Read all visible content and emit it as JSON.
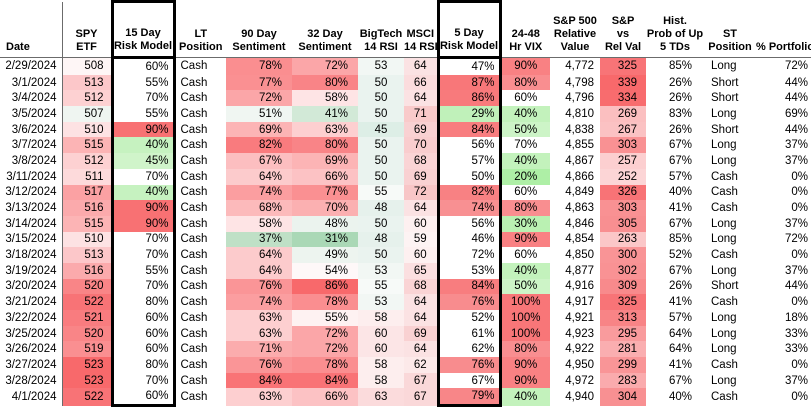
{
  "table": {
    "columns": [
      {
        "id": "date",
        "lines": [
          "Date"
        ],
        "boxed": false
      },
      {
        "id": "spy-etf",
        "lines": [
          "SPY",
          "ETF"
        ],
        "boxed": false
      },
      {
        "id": "risk-15d",
        "lines": [
          "15 Day",
          "Risk Model"
        ],
        "boxed": true
      },
      {
        "id": "lt-position",
        "lines": [
          "LT",
          "Position"
        ],
        "boxed": false
      },
      {
        "id": "sent-90d",
        "lines": [
          "90 Day",
          "Sentiment"
        ],
        "boxed": false
      },
      {
        "id": "sent-32d",
        "lines": [
          "32 Day",
          "Sentiment"
        ],
        "boxed": false
      },
      {
        "id": "bigtech-rsi",
        "lines": [
          "BigTech",
          "14 RSI"
        ],
        "boxed": false
      },
      {
        "id": "msci-rsi",
        "lines": [
          "MSCI",
          "14 RSI"
        ],
        "boxed": false
      },
      {
        "id": "risk-5d",
        "lines": [
          "5 Day",
          "Risk Model"
        ],
        "boxed": true
      },
      {
        "id": "vix-24-48",
        "lines": [
          "24-48",
          "Hr VIX"
        ],
        "boxed": false
      },
      {
        "id": "sp500-rel-value",
        "lines": [
          "S&P 500",
          "Relative",
          "Value"
        ],
        "boxed": false
      },
      {
        "id": "sp-vs-rel-val",
        "lines": [
          "S&P",
          "vs",
          "Rel Val"
        ],
        "boxed": false
      },
      {
        "id": "hist-prob-up-5tds",
        "lines": [
          "Hist.",
          "Prob of Up",
          "5 TDs"
        ],
        "boxed": false
      },
      {
        "id": "st-position",
        "lines": [
          "ST",
          "Position"
        ],
        "boxed": false
      },
      {
        "id": "pct-portfolio",
        "lines": [
          "% Portfolio"
        ],
        "boxed": false
      }
    ],
    "rows": [
      [
        [
          "2/29/2024"
        ],
        [
          "508",
          "#fef6f6"
        ],
        [
          "60%"
        ],
        [
          "Cash"
        ],
        [
          "78%",
          "#fa8e90"
        ],
        [
          "72%",
          "#fba6a8"
        ],
        [
          "53",
          "#f2f7f4"
        ],
        [
          "64",
          "#fbe2e3"
        ],
        [
          "47%"
        ],
        [
          "90%",
          "#f98183"
        ],
        [
          "4,772"
        ],
        [
          "325",
          "#f87477"
        ],
        [
          "85%"
        ],
        [
          "Long"
        ],
        [
          "72%"
        ]
      ],
      [
        [
          "3/1/2024"
        ],
        [
          "513",
          "#fcc7c9"
        ],
        [
          "55%"
        ],
        [
          "Cash"
        ],
        [
          "77%",
          "#fa9092"
        ],
        [
          "80%",
          "#f98487"
        ],
        [
          "50",
          "#eaf3ef"
        ],
        [
          "66",
          "#fbdcdd"
        ],
        [
          "87%",
          "#f87779"
        ],
        [
          "80%",
          "#f98e90"
        ],
        [
          "4,798"
        ],
        [
          "339",
          "#f8696b"
        ],
        [
          "26%"
        ],
        [
          "Short"
        ],
        [
          "44%"
        ]
      ],
      [
        [
          "3/4/2024"
        ],
        [
          "512",
          "#fdd1d2"
        ],
        [
          "70%"
        ],
        [
          "Cash"
        ],
        [
          "72%",
          "#fba6a8"
        ],
        [
          "58%",
          "#fee4e5"
        ],
        [
          "50",
          "#eaf3ef"
        ],
        [
          "64",
          "#fbe2e3"
        ],
        [
          "86%",
          "#f87a7c"
        ],
        [
          "60%"
        ],
        [
          "4,796"
        ],
        [
          "334",
          "#f86c6e"
        ],
        [
          "26%"
        ],
        [
          "Short"
        ],
        [
          "44%"
        ]
      ],
      [
        [
          "3/5/2024"
        ],
        [
          "507",
          "#eff5f1"
        ],
        [
          "55%"
        ],
        [
          "Cash"
        ],
        [
          "51%",
          "#f0f6f2"
        ],
        [
          "41%",
          "#d2e9d7"
        ],
        [
          "50",
          "#eaf3ef"
        ],
        [
          "71",
          "#f9caca"
        ],
        [
          "29%",
          "#c0f1ba"
        ],
        [
          "40%",
          "#c3f2bc"
        ],
        [
          "4,810"
        ],
        [
          "269",
          "#fbbfc0"
        ],
        [
          "83%"
        ],
        [
          "Long"
        ],
        [
          "69%"
        ]
      ],
      [
        [
          "3/6/2024"
        ],
        [
          "510",
          "#fde2e3"
        ],
        [
          "90%",
          "#f87173"
        ],
        [
          "Cash"
        ],
        [
          "69%",
          "#fcb4b5"
        ],
        [
          "63%",
          "#fdcfd0"
        ],
        [
          "45",
          "#ddeee6"
        ],
        [
          "69",
          "#f9d1d2"
        ],
        [
          "84%",
          "#f87d7f"
        ],
        [
          "50%",
          "#cdf4c7"
        ],
        [
          "4,838"
        ],
        [
          "267",
          "#fbc2c3"
        ],
        [
          "26%"
        ],
        [
          "Short"
        ],
        [
          "44%"
        ]
      ],
      [
        [
          "3/7/2024"
        ],
        [
          "515",
          "#fcb4b5"
        ],
        [
          "40%",
          "#c6f2c0"
        ],
        [
          "Cash"
        ],
        [
          "82%",
          "#f97b7e"
        ],
        [
          "80%",
          "#f98487"
        ],
        [
          "50",
          "#eaf3ef"
        ],
        [
          "70",
          "#f9cdce"
        ],
        [
          "56%"
        ],
        [
          "70%"
        ],
        [
          "4,855"
        ],
        [
          "303",
          "#f99193"
        ],
        [
          "67%"
        ],
        [
          "Long"
        ],
        [
          "37%"
        ]
      ],
      [
        [
          "3/8/2024"
        ],
        [
          "512",
          "#fdd1d2"
        ],
        [
          "45%",
          "#d0f4ca"
        ],
        [
          "Cash"
        ],
        [
          "67%",
          "#fcbec0"
        ],
        [
          "69%",
          "#fcb4b5"
        ],
        [
          "50",
          "#eaf3ef"
        ],
        [
          "68",
          "#fad4d5"
        ],
        [
          "57%"
        ],
        [
          "40%",
          "#c3f2bc"
        ],
        [
          "4,867"
        ],
        [
          "257",
          "#fccfd0"
        ],
        [
          "67%"
        ],
        [
          "Long"
        ],
        [
          "37%"
        ]
      ],
      [
        [
          "3/11/2024"
        ],
        [
          "511",
          "#fddadb"
        ],
        [
          "70%"
        ],
        [
          "Cash"
        ],
        [
          "64%",
          "#fccbcc"
        ],
        [
          "66%",
          "#fcc2c4"
        ],
        [
          "50",
          "#eaf3ef"
        ],
        [
          "69",
          "#f9d1d2"
        ],
        [
          "50%"
        ],
        [
          "20%",
          "#aeefa6"
        ],
        [
          "4,866"
        ],
        [
          "252",
          "#fcd5d6"
        ],
        [
          "57%"
        ],
        [
          "Cash"
        ],
        [
          "0%"
        ]
      ],
      [
        [
          "3/12/2024"
        ],
        [
          "517",
          "#fba1a3"
        ],
        [
          "40%",
          "#c6f2c0"
        ],
        [
          "Cash"
        ],
        [
          "74%",
          "#fb9ea0"
        ],
        [
          "77%",
          "#fa9092"
        ],
        [
          "55",
          "#f7faf8"
        ],
        [
          "72",
          "#f8c6c7"
        ],
        [
          "82%",
          "#f88183"
        ],
        [
          "60%"
        ],
        [
          "4,849"
        ],
        [
          "326",
          "#f87376"
        ],
        [
          "40%"
        ],
        [
          "Cash"
        ],
        [
          "0%"
        ]
      ],
      [
        [
          "3/13/2024"
        ],
        [
          "516",
          "#fbaaac"
        ],
        [
          "90%",
          "#f87173"
        ],
        [
          "Cash"
        ],
        [
          "68%",
          "#fcbabb"
        ],
        [
          "70%",
          "#fbb0b1"
        ],
        [
          "48",
          "#e6f1ec"
        ],
        [
          "64",
          "#fbe2e3"
        ],
        [
          "74%",
          "#f89092"
        ],
        [
          "80%",
          "#f98e90"
        ],
        [
          "4,863"
        ],
        [
          "303",
          "#f99193"
        ],
        [
          "41%"
        ],
        [
          "Cash"
        ],
        [
          "0%"
        ]
      ],
      [
        [
          "3/14/2024"
        ],
        [
          "515",
          "#fcb4b5"
        ],
        [
          "90%",
          "#f87173"
        ],
        [
          "Cash"
        ],
        [
          "58%",
          "#fee4e5"
        ],
        [
          "48%",
          "#ebf3ee"
        ],
        [
          "50",
          "#eaf3ef"
        ],
        [
          "60",
          "#fdf0f0"
        ],
        [
          "56%"
        ],
        [
          "30%",
          "#baf1b2"
        ],
        [
          "4,846"
        ],
        [
          "305",
          "#f88f91"
        ],
        [
          "67%"
        ],
        [
          "Long"
        ],
        [
          "37%"
        ]
      ],
      [
        [
          "3/15/2024"
        ],
        [
          "510",
          "#fde2e3"
        ],
        [
          "70%"
        ],
        [
          "Cash"
        ],
        [
          "37%",
          "#bfe0c6"
        ],
        [
          "31%",
          "#aad8b6"
        ],
        [
          "48",
          "#e6f1ec"
        ],
        [
          "59",
          "#fdf3f3"
        ],
        [
          "46%"
        ],
        [
          "90%",
          "#f98183"
        ],
        [
          "4,854"
        ],
        [
          "263",
          "#fbc7c8"
        ],
        [
          "85%"
        ],
        [
          "Long"
        ],
        [
          "72%"
        ]
      ],
      [
        [
          "3/18/2024"
        ],
        [
          "513",
          "#fcc7c9"
        ],
        [
          "70%"
        ],
        [
          "Cash"
        ],
        [
          "64%",
          "#fccbcc"
        ],
        [
          "49%",
          "#edf4ef"
        ],
        [
          "50",
          "#eaf3ef"
        ],
        [
          "60",
          "#fdf0f0"
        ],
        [
          "72%"
        ],
        [
          "60%"
        ],
        [
          "4,850"
        ],
        [
          "300",
          "#f99496"
        ],
        [
          "52%"
        ],
        [
          "Cash"
        ],
        [
          "0%"
        ]
      ],
      [
        [
          "3/19/2024"
        ],
        [
          "516",
          "#fbaaac"
        ],
        [
          "55%"
        ],
        [
          "Cash"
        ],
        [
          "64%",
          "#fccbcc"
        ],
        [
          "54%",
          "#fef8f8"
        ],
        [
          "53",
          "#f2f7f4"
        ],
        [
          "65",
          "#fbdfe0"
        ],
        [
          "53%"
        ],
        [
          "40%",
          "#c3f2bc"
        ],
        [
          "4,877"
        ],
        [
          "302",
          "#f99294"
        ],
        [
          "67%"
        ],
        [
          "Long"
        ],
        [
          "37%"
        ]
      ],
      [
        [
          "3/20/2024"
        ],
        [
          "520",
          "#f98587"
        ],
        [
          "70%"
        ],
        [
          "Cash"
        ],
        [
          "76%",
          "#fa9597"
        ],
        [
          "86%",
          "#f8696b"
        ],
        [
          "55",
          "#f7faf8"
        ],
        [
          "68",
          "#fad4d5"
        ],
        [
          "84%",
          "#f87d7f"
        ],
        [
          "50%",
          "#cdf4c7"
        ],
        [
          "4,916"
        ],
        [
          "309",
          "#f88a8c"
        ],
        [
          "26%"
        ],
        [
          "Short"
        ],
        [
          "44%"
        ]
      ],
      [
        [
          "3/21/2024"
        ],
        [
          "522",
          "#f87376"
        ],
        [
          "80%"
        ],
        [
          "Cash"
        ],
        [
          "74%",
          "#fb9ea0"
        ],
        [
          "78%",
          "#fa8e90"
        ],
        [
          "53",
          "#f2f7f4"
        ],
        [
          "64",
          "#fbe2e3"
        ],
        [
          "76%",
          "#f88c8e"
        ],
        [
          "100%",
          "#f87678"
        ],
        [
          "4,917"
        ],
        [
          "325",
          "#f87477"
        ],
        [
          "41%"
        ],
        [
          "Cash"
        ],
        [
          "0%"
        ]
      ],
      [
        [
          "3/22/2024"
        ],
        [
          "521",
          "#f97c7f"
        ],
        [
          "60%"
        ],
        [
          "Cash"
        ],
        [
          "63%",
          "#fdcfd0"
        ],
        [
          "55%",
          "#fef2f2"
        ],
        [
          "58",
          "#fdeeee"
        ],
        [
          "64",
          "#fbe2e3"
        ],
        [
          "52%"
        ],
        [
          "100%",
          "#f87678"
        ],
        [
          "4,921"
        ],
        [
          "313",
          "#f88486"
        ],
        [
          "57%"
        ],
        [
          "Long"
        ],
        [
          "18%"
        ]
      ],
      [
        [
          "3/25/2024"
        ],
        [
          "520",
          "#f98587"
        ],
        [
          "60%"
        ],
        [
          "Cash"
        ],
        [
          "63%",
          "#fdcfd0"
        ],
        [
          "72%",
          "#fba6a8"
        ],
        [
          "60",
          "#fce5e6"
        ],
        [
          "69",
          "#f9d1d2"
        ],
        [
          "61%"
        ],
        [
          "100%",
          "#f87678"
        ],
        [
          "4,923"
        ],
        [
          "295",
          "#f99b9d"
        ],
        [
          "64%"
        ],
        [
          "Long"
        ],
        [
          "33%"
        ]
      ],
      [
        [
          "3/26/2024"
        ],
        [
          "519",
          "#fa8f91"
        ],
        [
          "60%"
        ],
        [
          "Cash"
        ],
        [
          "71%",
          "#fbacad"
        ],
        [
          "72%",
          "#fba6a8"
        ],
        [
          "60",
          "#fce5e6"
        ],
        [
          "64",
          "#fbe2e3"
        ],
        [
          "62%"
        ],
        [
          "80%",
          "#f98e90"
        ],
        [
          "4,922"
        ],
        [
          "281",
          "#faaeb0"
        ],
        [
          "64%"
        ],
        [
          "Long"
        ],
        [
          "33%"
        ]
      ],
      [
        [
          "3/27/2024"
        ],
        [
          "523",
          "#f8696b"
        ],
        [
          "80%"
        ],
        [
          "Cash"
        ],
        [
          "76%",
          "#fa9597"
        ],
        [
          "78%",
          "#fa8e90"
        ],
        [
          "58",
          "#fdeeee"
        ],
        [
          "62",
          "#fce9e9"
        ],
        [
          "76%",
          "#f88c8e"
        ],
        [
          "90%",
          "#f98183"
        ],
        [
          "4,950"
        ],
        [
          "299",
          "#f99597"
        ],
        [
          "41%"
        ],
        [
          "Cash"
        ],
        [
          "0%"
        ]
      ],
      [
        [
          "3/28/2024"
        ],
        [
          "523",
          "#f8696b"
        ],
        [
          "70%"
        ],
        [
          "Cash"
        ],
        [
          "84%",
          "#f97376"
        ],
        [
          "84%",
          "#f97376"
        ],
        [
          "58",
          "#fdeeee"
        ],
        [
          "67",
          "#fad8d9"
        ],
        [
          "67%"
        ],
        [
          "90%",
          "#f98183"
        ],
        [
          "4,972"
        ],
        [
          "283",
          "#faabad"
        ],
        [
          "67%"
        ],
        [
          "Long"
        ],
        [
          "37%"
        ]
      ],
      [
        [
          "4/1/2024"
        ],
        [
          "522",
          "#f87376"
        ],
        [
          "60%"
        ],
        [
          "Cash"
        ],
        [
          "63%",
          "#fdcfd0"
        ],
        [
          "66%",
          "#fcc2c4"
        ],
        [
          "63",
          "#fbdbdc"
        ],
        [
          "67",
          "#fad8d9"
        ],
        [
          "79%",
          "#f88688"
        ],
        [
          "40%",
          "#c3f2bc"
        ],
        [
          "4,940"
        ],
        [
          "304",
          "#f89092"
        ],
        [
          "40%"
        ],
        [
          "Cash"
        ],
        [
          "0%"
        ]
      ]
    ]
  },
  "colors": {
    "risk_high_red": "#f8696b",
    "risk_low_green": "#c6f2c0",
    "box_border": "#000000",
    "grid_line": "#6b6b6b"
  }
}
